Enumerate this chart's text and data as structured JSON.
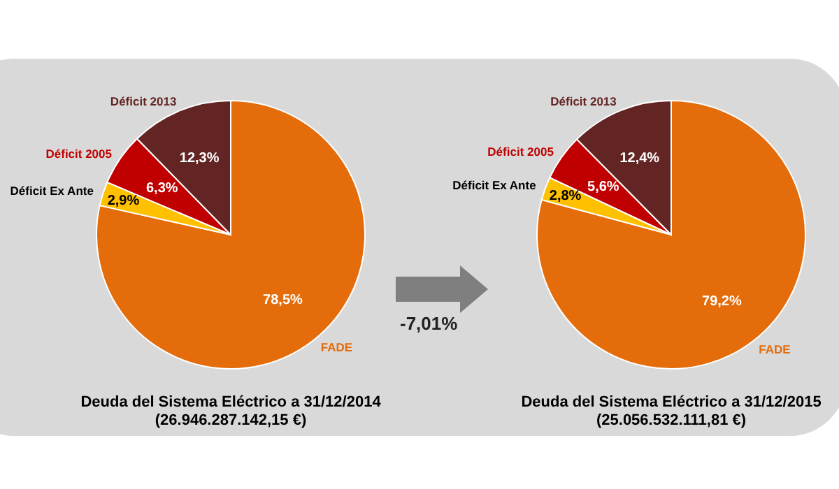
{
  "chart_data": [
    {
      "type": "pie",
      "title": "Deuda del Sistema Eléctrico a 31/12/2014",
      "subtitle": "(26.946.287.142,15 €)",
      "categories": [
        "FADE",
        "Déficit Ex Ante",
        "Déficit 2005",
        "Déficit 2013"
      ],
      "values": [
        78.5,
        2.9,
        6.3,
        12.3
      ],
      "colors": [
        "#e46c0a",
        "#ffc000",
        "#c00000",
        "#632523"
      ],
      "value_labels": [
        "78,5%",
        "2,9%",
        "6,3%",
        "12,3%"
      ],
      "annotations": [
        "-7,01%"
      ]
    },
    {
      "type": "pie",
      "title": "Deuda del Sistema Eléctrico a 31/12/2015",
      "subtitle": "(25.056.532.111,81 €)",
      "categories": [
        "FADE",
        "Déficit Ex Ante",
        "Déficit 2005",
        "Déficit 2013"
      ],
      "values": [
        79.2,
        2.8,
        5.6,
        12.4
      ],
      "colors": [
        "#e46c0a",
        "#ffc000",
        "#c00000",
        "#632523"
      ],
      "value_labels": [
        "79,2%",
        "2,8%",
        "5,6%",
        "12,4%"
      ]
    }
  ]
}
